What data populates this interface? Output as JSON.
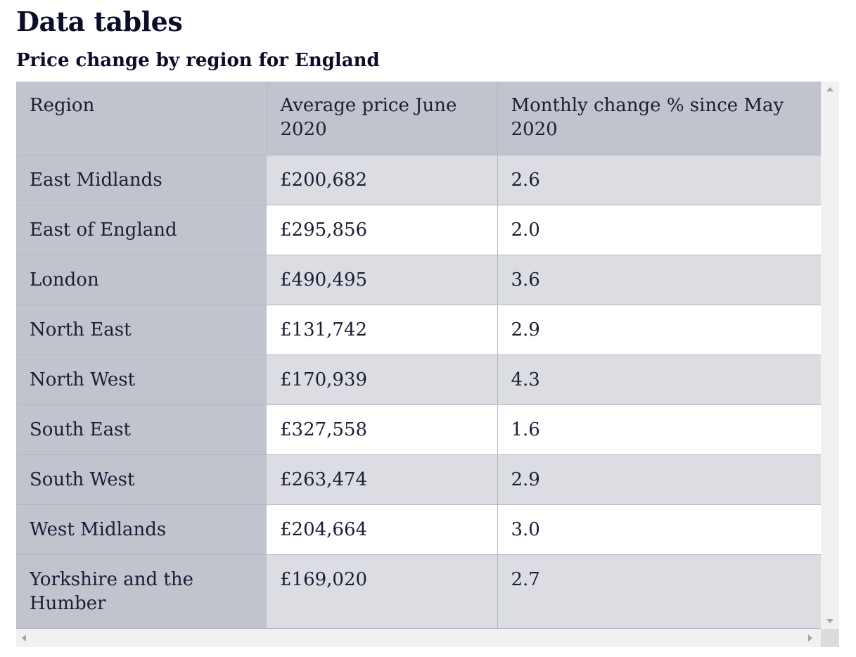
{
  "page": {
    "heading": "Data tables",
    "table_heading": "Price change by region for England"
  },
  "table": {
    "headers": [
      "Region",
      "Average price June 2020",
      "Monthly change % since May 2020"
    ],
    "rows": [
      {
        "region": "East Midlands",
        "price": "£200,682",
        "change": "2.6"
      },
      {
        "region": "East of England",
        "price": "£295,856",
        "change": "2.0"
      },
      {
        "region": "London",
        "price": "£490,495",
        "change": "3.6"
      },
      {
        "region": "North East",
        "price": "£131,742",
        "change": "2.9"
      },
      {
        "region": "North West",
        "price": "£170,939",
        "change": "4.3"
      },
      {
        "region": "South East",
        "price": "£327,558",
        "change": "1.6"
      },
      {
        "region": "South West",
        "price": "£263,474",
        "change": "2.9"
      },
      {
        "region": "West Midlands",
        "price": "£204,664",
        "change": "3.0"
      },
      {
        "region": "Yorkshire and the Humber",
        "price": "£169,020",
        "change": "2.7"
      }
    ]
  },
  "colors": {
    "text": "#0b0c2a",
    "header_bg": "#c1c3cd",
    "row_shaded_bg": "#dcdde2",
    "row_plain_bg": "#ffffff",
    "scrollbar_bg": "#f1f1f1"
  }
}
